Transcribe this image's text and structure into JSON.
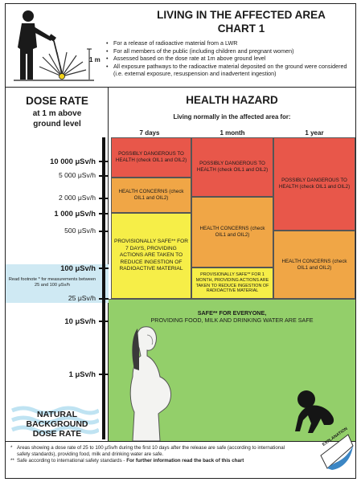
{
  "header": {
    "title": "LIVING IN THE AFFECTED AREA",
    "subtitle": "CHART 1",
    "height_label": "1 m",
    "bullets": [
      "For a release of radioactive material from a LWR",
      "For all members of the public (including children and pregnant women)",
      "Assessed based on the dose rate at 1m above ground level",
      "All exposure pathways to the radioactive material deposited on the ground were considered (i.e. external exposure, resuspension and inadvertent ingestion)"
    ]
  },
  "dose_rate": {
    "title": "DOSE RATE",
    "subtitle_line1": "at 1 m above",
    "subtitle_line2": "ground level",
    "levels": [
      {
        "label": "10 000 μSv/h",
        "value": 10000,
        "bold": true
      },
      {
        "label": "5 000 μSv/h",
        "value": 5000,
        "bold": false
      },
      {
        "label": "2 000 μSv/h",
        "value": 2000,
        "bold": false
      },
      {
        "label": "1 000 μSv/h",
        "value": 1000,
        "bold": true
      },
      {
        "label": "500 μSv/h",
        "value": 500,
        "bold": false
      },
      {
        "label": "100 μSv/h",
        "value": 100,
        "bold": true
      },
      {
        "label": "25 μSv/h",
        "value": 25,
        "bold": false
      },
      {
        "label": "10 μSv/h",
        "value": 10,
        "bold": true
      },
      {
        "label": "1 μSv/h",
        "value": 1,
        "bold": true
      }
    ],
    "footnote_hint": "Read footnote * for measurements between 25 and 100 μSv/h",
    "natural_background": [
      "NATURAL",
      "BACKGROUND",
      "DOSE RATE"
    ]
  },
  "health_hazard": {
    "title": "HEALTH HAZARD",
    "subtitle": "Living normally in the affected area for:",
    "columns": [
      "7 days",
      "1 month",
      "1 year"
    ],
    "zones": {
      "d7_danger": "POSSIBLY DANGEROUS TO HEALTH (check OIL1 and OIL2)",
      "d7_concern": "HEALTH CONCERNS (check OIL1 and OIL2)",
      "d7_safe": "PROVISIONALLY SAFE** FOR 7 DAYS, PROVIDING ACTIONS ARE TAKEN TO REDUCE INGESTION OF RADIOACTIVE MATERIAL",
      "m1_danger": "POSSIBLY DANGEROUS TO HEALTH (check OIL1 and OIL2)",
      "m1_concern": "HEALTH CONCERNS (check OIL1 and OIL2)",
      "m1_safe": "PROVISIONALLY SAFE** FOR 1 MONTH, PROVIDING ACTIONS ARE TAKEN TO REDUCE INGESTION OF RADIOACTIVE MATERIAL",
      "y1_danger": "POSSIBLY DANGEROUS TO HEALTH (check OIL1 and OIL2)",
      "y1_concern": "HEALTH CONCERNS (check OIL1 and OIL2)",
      "safe_all_line1": "SAFE** FOR EVERYONE,",
      "safe_all_line2": "PROVIDING FOOD, MILK AND DRINKING WATER ARE SAFE"
    },
    "colors": {
      "danger": "#e8574a",
      "concern": "#f0a646",
      "provisional": "#f6ee48",
      "safe": "#93cf6a",
      "footnote_band": "#cfe9f3"
    }
  },
  "footer": {
    "note1_mark": "*",
    "note1": "Areas showing a dose rate of 25 to 100 μSv/h during the first 10 days after the release are safe (according to international safety standards), providing food, milk and drinking water are safe.",
    "note2_mark": "**",
    "note2_plain": "Safe according to international safety standards - ",
    "note2_bold": "For further information read the back of this chart",
    "explanation": "EXPLANATION"
  },
  "icons": [
    "worker-with-meter-icon",
    "pregnant-woman-icon",
    "crawling-baby-icon",
    "explanation-page-curl-icon"
  ]
}
